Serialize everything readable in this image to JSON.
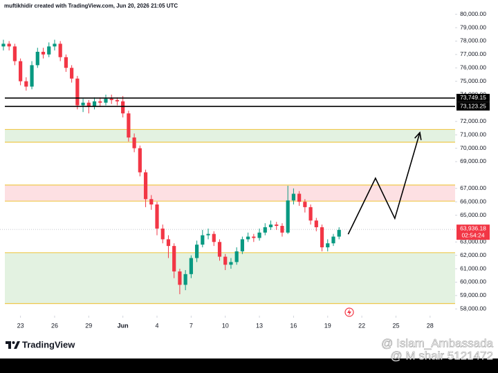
{
  "chart_data": {
    "type": "candlestick",
    "title": "muftikhidir created with TradingView.com, Jun 20, 2026 21:05 UTC",
    "brand": "TradingView",
    "watermarks": [
      "@ Islam_Ambassada",
      "@ M shair 5121472"
    ],
    "up_color": "#089981",
    "down_color": "#f23645",
    "x": [
      -1.5,
      -1,
      -0.5,
      0,
      0.5,
      1,
      1.5,
      2,
      2.5,
      3,
      3.5,
      4,
      4.5,
      5,
      5.5,
      6,
      6.5,
      7,
      7.5,
      8,
      8.5,
      9,
      9.5,
      10,
      10.5,
      11,
      11.5,
      12,
      12.5,
      13,
      13.5,
      14,
      14.5,
      15,
      15.5,
      16,
      16.5,
      17,
      17.5,
      18,
      18.5,
      19,
      19.5,
      20,
      20.5,
      21,
      21.5,
      22,
      22.5,
      23,
      23.5,
      24,
      24.5,
      25,
      25.5,
      26,
      26.5,
      27,
      27.5,
      28
    ],
    "open": [
      77600,
      77800,
      77600,
      76500,
      75000,
      74600,
      76200,
      77200,
      77000,
      77600,
      77800,
      76800,
      76000,
      75200,
      73200,
      73400,
      73100,
      73500,
      73400,
      73700,
      73600,
      73500,
      72600,
      70800,
      70000,
      68200,
      66200,
      65800,
      64000,
      63200,
      62700,
      60800,
      59800,
      60600,
      61800,
      62800,
      63500,
      63600,
      63000,
      61900,
      61300,
      61500,
      62300,
      63200,
      63400,
      63300,
      63700,
      64100,
      64300,
      64200,
      63700,
      66100,
      66600,
      66000,
      65600,
      64600,
      64100,
      62600,
      62900,
      63400
    ],
    "high": [
      78100,
      78000,
      77800,
      76700,
      75300,
      76500,
      77500,
      77500,
      77900,
      78100,
      78000,
      77000,
      76200,
      75400,
      73700,
      73600,
      73800,
      73800,
      74000,
      74000,
      73800,
      73900,
      72800,
      71100,
      70200,
      68400,
      66500,
      66000,
      64300,
      63500,
      62900,
      61000,
      60900,
      62000,
      63100,
      63900,
      64000,
      63800,
      63200,
      62100,
      61800,
      62600,
      63400,
      63700,
      63600,
      64000,
      64400,
      64600,
      64500,
      64400,
      67200,
      67000,
      66800,
      66200,
      65800,
      64800,
      64300,
      63200,
      63600,
      64100
    ],
    "low": [
      77300,
      77300,
      76200,
      74700,
      74300,
      74400,
      76000,
      76700,
      76800,
      77300,
      76500,
      75700,
      74900,
      72900,
      72700,
      72600,
      72900,
      73100,
      73200,
      73300,
      73200,
      72300,
      70500,
      69700,
      67900,
      65600,
      65400,
      63500,
      62900,
      61800,
      60300,
      59100,
      59400,
      60300,
      61500,
      62600,
      63200,
      62700,
      61600,
      60900,
      61000,
      61300,
      62100,
      63000,
      63000,
      63100,
      63500,
      63900,
      63900,
      63400,
      63600,
      65800,
      65700,
      65200,
      64300,
      63800,
      62300,
      62300,
      62700,
      63200
    ],
    "close": [
      77800,
      77600,
      76500,
      75000,
      74600,
      76200,
      77200,
      77000,
      77600,
      77800,
      76800,
      76000,
      75200,
      73200,
      73400,
      73100,
      73500,
      73400,
      73700,
      73600,
      73500,
      72600,
      70800,
      70000,
      68200,
      66200,
      65800,
      64000,
      63200,
      62700,
      60800,
      59800,
      60600,
      61800,
      62800,
      63500,
      63600,
      63000,
      61900,
      61300,
      61500,
      62300,
      63200,
      63400,
      63300,
      63700,
      64100,
      64300,
      64200,
      63700,
      66100,
      66600,
      66000,
      65600,
      64600,
      64100,
      62600,
      62900,
      63400,
      63900
    ],
    "xlim": [
      -1.8,
      38.2
    ],
    "xticks": [
      {
        "value": 0,
        "label": "23"
      },
      {
        "value": 3,
        "label": "26"
      },
      {
        "value": 6,
        "label": "29"
      },
      {
        "value": 9,
        "label": "Jun"
      },
      {
        "value": 12,
        "label": "4"
      },
      {
        "value": 15,
        "label": "7"
      },
      {
        "value": 18,
        "label": "10"
      },
      {
        "value": 21,
        "label": "13"
      },
      {
        "value": 24,
        "label": "16"
      },
      {
        "value": 27,
        "label": "19"
      },
      {
        "value": 30,
        "label": "22"
      },
      {
        "value": 33,
        "label": "25"
      },
      {
        "value": 36,
        "label": "28"
      }
    ],
    "ylim": [
      57600,
      80500
    ],
    "yticks": [
      {
        "value": 80000,
        "label": "80,000.00"
      },
      {
        "value": 79000,
        "label": "79,000.00"
      },
      {
        "value": 78000,
        "label": "78,000.00"
      },
      {
        "value": 77000,
        "label": "77,000.00"
      },
      {
        "value": 76000,
        "label": "76,000.00"
      },
      {
        "value": 75000,
        "label": "75,000.00"
      },
      {
        "value": 74000,
        "label": "74,000.00"
      },
      {
        "value": 72000,
        "label": "72,000.00"
      },
      {
        "value": 71000,
        "label": "71,000.00"
      },
      {
        "value": 70000,
        "label": "70,000.00"
      },
      {
        "value": 69000,
        "label": "69,000.00"
      },
      {
        "value": 67000,
        "label": "67,000.00"
      },
      {
        "value": 66000,
        "label": "66,000.00"
      },
      {
        "value": 65000,
        "label": "65,000.00"
      },
      {
        "value": 63000,
        "label": "63,000.00"
      },
      {
        "value": 62000,
        "label": "62,000.00"
      },
      {
        "value": 61000,
        "label": "61,000.00"
      },
      {
        "value": 60000,
        "label": "60,000.00"
      },
      {
        "value": 59000,
        "label": "59,000.00"
      },
      {
        "value": 58000,
        "label": "58,000.00"
      }
    ],
    "zones": [
      {
        "from": 71400,
        "to": 70450,
        "color": "#e3f2e1"
      },
      {
        "from": 67250,
        "to": 66050,
        "color": "#fde0e3"
      },
      {
        "from": 62200,
        "to": 58400,
        "color": "#e3f2e1"
      }
    ],
    "zone_border_color": "#f0c84b",
    "hlines": [
      {
        "value": 73749.15,
        "label": "73,749.15"
      },
      {
        "value": 73123.25,
        "label": "73,123.25"
      }
    ],
    "last_price": {
      "value": 63936.18,
      "label": "63,936.18",
      "countdown": "02:54:24"
    },
    "projection": {
      "x": [
        28.8,
        31.2,
        32.9,
        35.1
      ],
      "y": [
        63575,
        67760,
        64760,
        71170
      ]
    }
  }
}
